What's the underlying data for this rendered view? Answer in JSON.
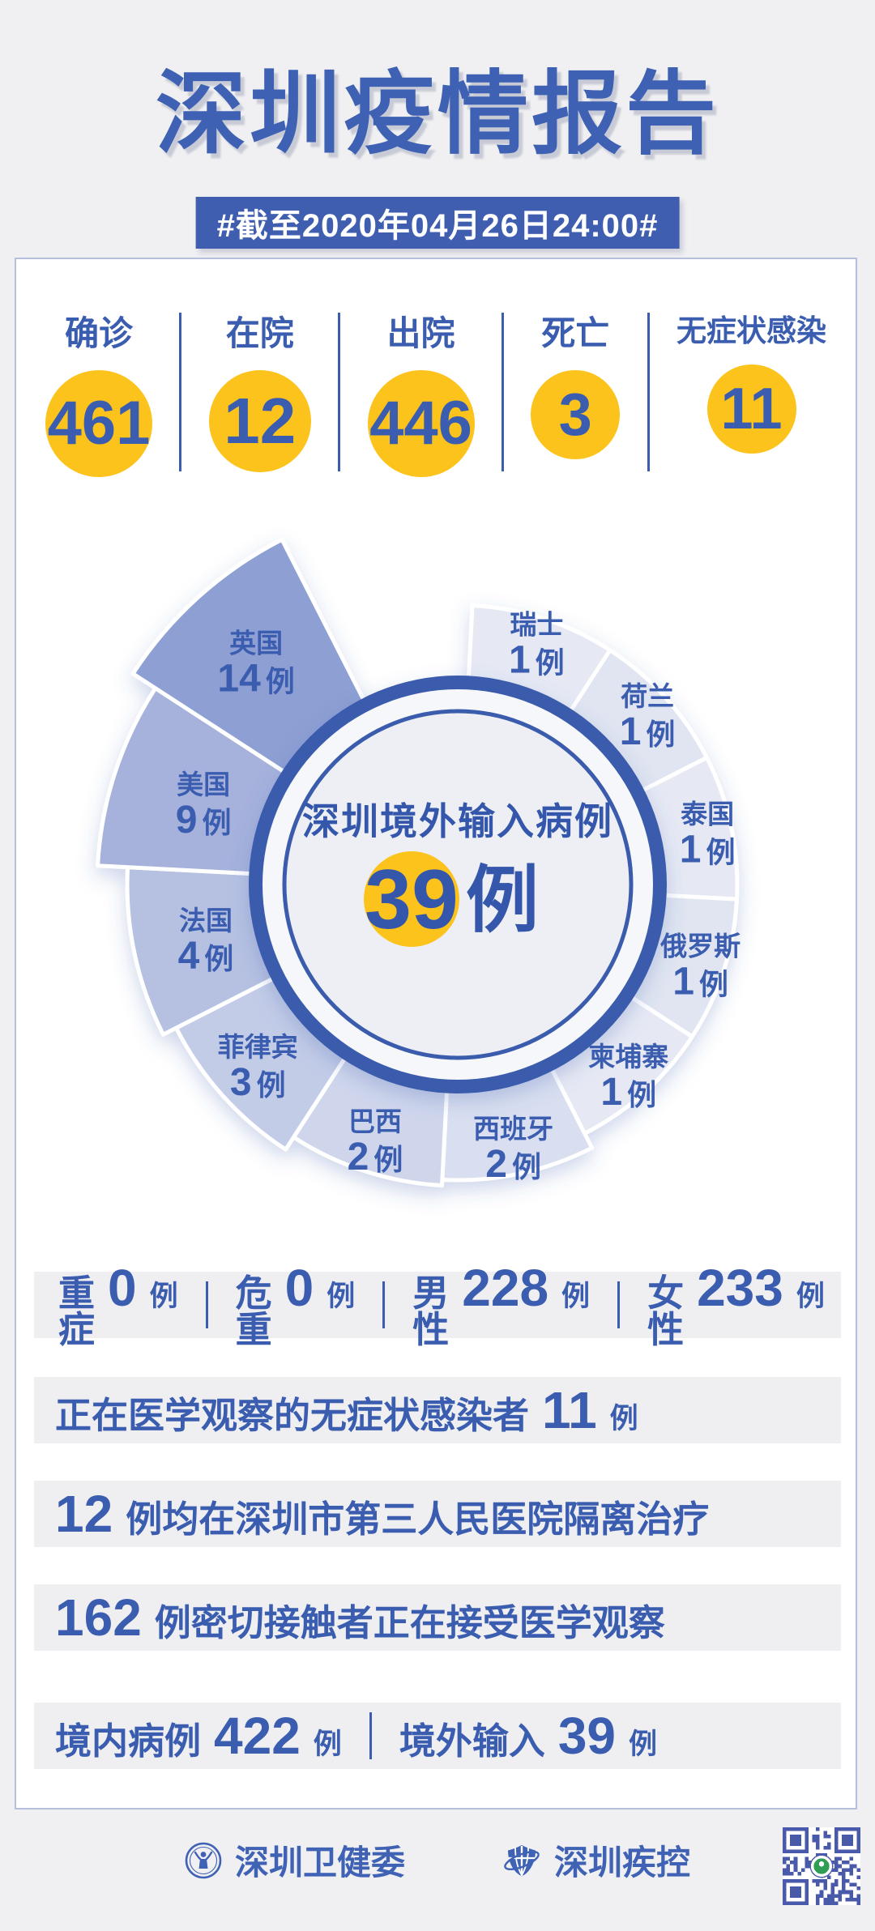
{
  "title": "深圳疫情报告",
  "banner": "#截至2020年04月26日24:00#",
  "colors": {
    "blue": "#3b5db0",
    "title_blue": "#3e61b4",
    "banner_bg": "#3f5eb0",
    "yellow": "#fcc31c",
    "page_bg": "#f0f0f2",
    "card_border": "#b6c0dc",
    "band_bg": "#efeff2",
    "ring_blue": "#3a5cad",
    "qr_blue": "#4a5aab",
    "qr_logo_green": "#2f9e55"
  },
  "stats": [
    {
      "key": "confirmed",
      "label": "确诊",
      "value": "461",
      "circle": 132,
      "num": 76
    },
    {
      "key": "in-hospital",
      "label": "在院",
      "value": "12",
      "circle": 126,
      "num": 80
    },
    {
      "key": "discharged",
      "label": "出院",
      "value": "446",
      "circle": 132,
      "num": 76
    },
    {
      "key": "deaths",
      "label": "死亡",
      "value": "3",
      "circle": 110,
      "num": 74
    },
    {
      "key": "asymptomatic",
      "label": "无症状感染",
      "value": "11",
      "circle": 110,
      "num": 72,
      "label_size": 37
    }
  ],
  "chart_data": {
    "type": "pie",
    "variant": "nightingale-rose",
    "title": "深圳境外输入病例",
    "total_value": 39,
    "total_label": "39",
    "unit": "例",
    "legend_position": "labels-on-slices",
    "slices": [
      {
        "name": "瑞士",
        "value": 1,
        "label": "1 例",
        "color": "#e6e9f4",
        "outer": 345
      },
      {
        "name": "荷兰",
        "value": 1,
        "label": "1 例",
        "color": "#e0e5f1",
        "outer": 345
      },
      {
        "name": "泰国",
        "value": 1,
        "label": "1 例",
        "color": "#e6e9f4",
        "outer": 345
      },
      {
        "name": "俄罗斯",
        "value": 1,
        "label": "1 例",
        "color": "#e0e5f1",
        "outer": 345
      },
      {
        "name": "柬埔寨",
        "value": 1,
        "label": "1 例",
        "color": "#e6e9f4",
        "outer": 345
      },
      {
        "name": "西班牙",
        "value": 2,
        "label": "2 例",
        "color": "#d9dff0",
        "outer": 365
      },
      {
        "name": "巴西",
        "value": 2,
        "label": "2 例",
        "color": "#cfd6ec",
        "outer": 372
      },
      {
        "name": "菲律宾",
        "value": 3,
        "label": "3 例",
        "color": "#c3cce7",
        "outer": 390
      },
      {
        "name": "法国",
        "value": 4,
        "label": "4 例",
        "color": "#b6c1e2",
        "outer": 408
      },
      {
        "name": "美国",
        "value": 9,
        "label": "9 例",
        "color": "#a6b2dc",
        "outer": 445
      },
      {
        "name": "英国",
        "value": 14,
        "label": "14 例",
        "color": "#8e9fd3",
        "outer": 478
      }
    ]
  },
  "info_rows": [
    {
      "spread": true,
      "groups": [
        [
          {
            "t": "txt",
            "s": "重症"
          },
          {
            "t": "num",
            "s": "0"
          },
          {
            "t": "unit",
            "s": "例"
          }
        ],
        [
          {
            "t": "txt",
            "s": "危重"
          },
          {
            "t": "num",
            "s": "0"
          },
          {
            "t": "unit",
            "s": "例"
          }
        ],
        [
          {
            "t": "txt",
            "s": "男性"
          },
          {
            "t": "num",
            "s": "228"
          },
          {
            "t": "unit",
            "s": "例"
          }
        ],
        [
          {
            "t": "txt",
            "s": "女性"
          },
          {
            "t": "num",
            "s": "233"
          },
          {
            "t": "unit",
            "s": "例"
          }
        ]
      ]
    },
    {
      "spread": false,
      "groups": [
        [
          {
            "t": "txt",
            "s": "正在医学观察的无症状感染者"
          },
          {
            "t": "num",
            "s": "11"
          },
          {
            "t": "unit",
            "s": "例"
          }
        ]
      ]
    },
    {
      "spread": false,
      "groups": [
        [
          {
            "t": "num",
            "s": "12"
          },
          {
            "t": "txt",
            "s": "例均在深圳市第三人民医院隔离治疗"
          }
        ]
      ]
    },
    {
      "spread": false,
      "groups": [
        [
          {
            "t": "num",
            "s": "162"
          },
          {
            "t": "txt",
            "s": "例密切接触者正在接受医学观察"
          }
        ]
      ]
    },
    {
      "spread": false,
      "groups": [
        [
          {
            "t": "txt",
            "s": "境内病例"
          },
          {
            "t": "num",
            "s": "422"
          },
          {
            "t": "unit",
            "s": "例"
          }
        ],
        [
          {
            "t": "txt",
            "s": "境外输入"
          },
          {
            "t": "num",
            "s": "39"
          },
          {
            "t": "unit",
            "s": "例"
          }
        ]
      ]
    }
  ],
  "footer": {
    "org1": "深圳卫健委",
    "org2": "深圳疾控",
    "qr_label": "qr-code"
  }
}
